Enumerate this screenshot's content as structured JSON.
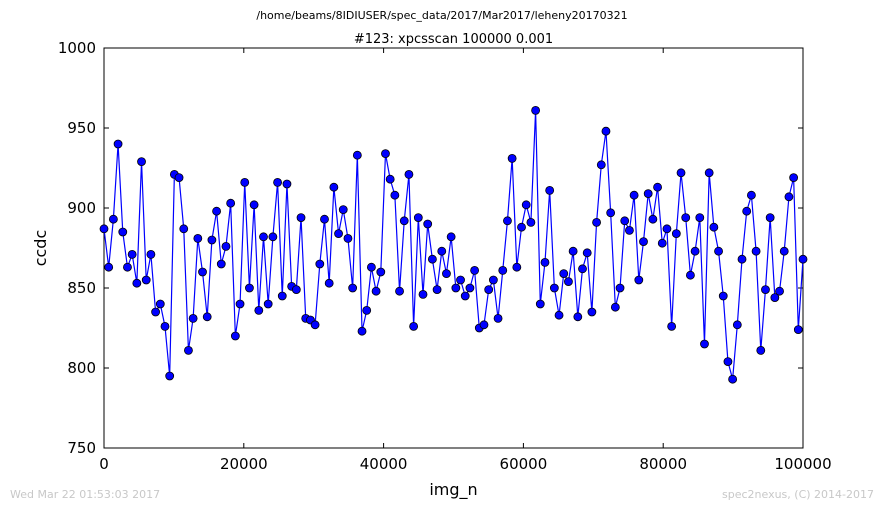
{
  "header": {
    "path": "/home/beams/8IDIUSER/spec_data/2017/Mar2017/leheny20170321"
  },
  "footer": {
    "timestamp": "Wed Mar 22 01:53:03 2017",
    "credit": "spec2nexus, (C) 2014-2017"
  },
  "chart_data": {
    "type": "line",
    "title": "#123: xpcsscan 100000 0.001",
    "xlabel": "img_n",
    "ylabel": "ccdc",
    "xlim": [
      0,
      100000
    ],
    "ylim": [
      750,
      1000
    ],
    "x_ticks": [
      "0",
      "20000",
      "40000",
      "60000",
      "80000",
      "100000"
    ],
    "y_ticks": [
      "750",
      "800",
      "850",
      "900",
      "950",
      "1000"
    ],
    "grid": false,
    "colors": {
      "series": "#0000ff"
    },
    "series": [
      {
        "values": [
          887,
          863,
          893,
          940,
          885,
          863,
          871,
          853,
          929,
          855,
          871,
          835,
          840,
          826,
          795,
          921,
          919,
          887,
          811,
          831,
          881,
          860,
          832,
          880,
          898,
          865,
          876,
          903,
          820,
          840,
          916,
          850,
          902,
          836,
          882,
          840,
          882,
          916,
          845,
          915,
          851,
          849,
          894,
          831,
          830,
          827,
          865,
          893,
          853,
          913,
          884,
          899,
          881,
          850,
          933,
          823,
          836,
          863,
          848,
          860,
          934,
          918,
          908,
          848,
          892,
          921,
          826,
          894,
          846,
          890,
          868,
          849,
          873,
          859,
          882,
          850,
          855,
          845,
          850,
          861,
          825,
          827,
          849,
          855,
          831,
          861,
          892,
          931,
          863,
          888,
          902,
          891,
          961,
          840,
          866,
          911,
          850,
          833,
          859,
          854,
          873,
          832,
          862,
          872,
          835,
          891,
          927,
          948,
          897,
          838,
          850,
          892,
          886,
          908,
          855,
          879,
          909,
          893,
          913,
          878,
          887,
          826,
          884,
          922,
          894,
          858,
          873,
          894,
          815,
          922,
          888,
          873,
          845,
          804,
          793,
          827,
          868,
          898,
          908,
          873,
          811,
          849,
          894,
          844,
          848,
          873,
          907,
          919,
          824,
          868
        ]
      }
    ]
  }
}
